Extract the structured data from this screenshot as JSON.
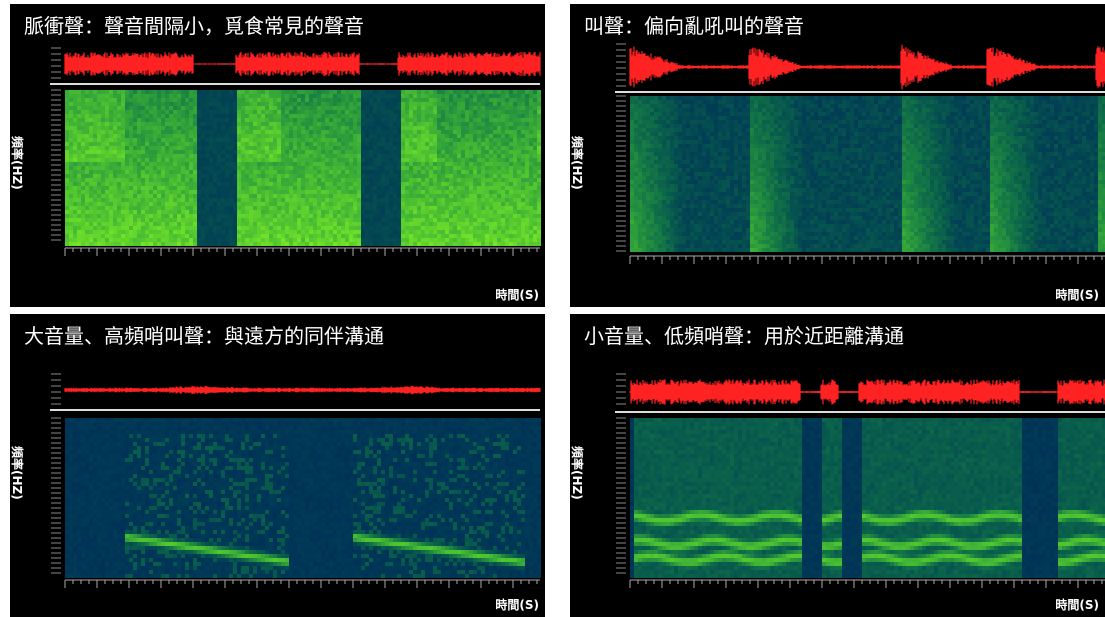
{
  "chart_data": [
    {
      "type": "heatmap",
      "title": "脈衝聲：聲音間隔小，覓食常見的聲音",
      "ylabel": "頻率(HZ)",
      "xlabel": "時間(S)",
      "pattern": "pulse",
      "colors": {
        "waveform": "#ff2222",
        "spectrogram_high": "#9be22b",
        "spectrogram_mid": "#2f8a2f"
      }
    },
    {
      "type": "heatmap",
      "title": "叫聲：偏向亂吼叫的聲音",
      "ylabel": "頻率(HZ)",
      "xlabel": "時間(S)",
      "pattern": "call",
      "colors": {
        "waveform": "#ff2222",
        "spectrogram_high": "#9be22b",
        "spectrogram_mid": "#2f8a2f"
      }
    },
    {
      "type": "heatmap",
      "title": "大音量、高頻哨叫聲：與遠方的同伴溝通",
      "ylabel": "頻率(HZ)",
      "xlabel": "時間(S)",
      "pattern": "whistle",
      "colors": {
        "waveform": "#ff2222",
        "spectrogram_high": "#9be22b",
        "spectrogram_mid": "#2f8a2f"
      }
    },
    {
      "type": "heatmap",
      "title": "小音量、低頻哨聲：用於近距離溝通",
      "ylabel": "頻率(HZ)",
      "xlabel": "時間(S)",
      "pattern": "lowwhistle",
      "colors": {
        "waveform": "#ff2222",
        "spectrogram_high": "#9be22b",
        "spectrogram_mid": "#2f8a2f"
      }
    }
  ]
}
